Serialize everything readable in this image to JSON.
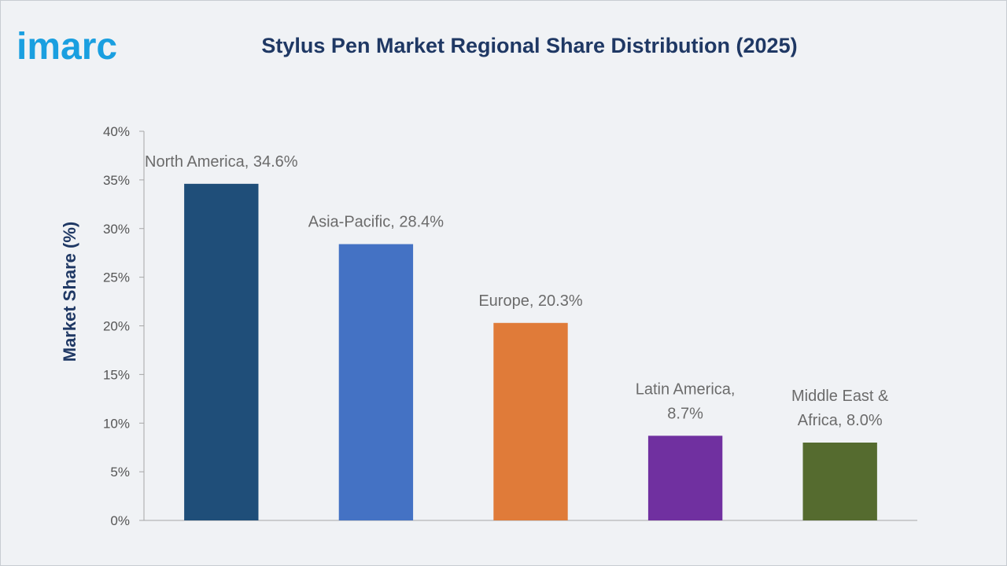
{
  "brand": {
    "logo_text": "imarc",
    "logo_color": "#1a9fe0"
  },
  "chart_data": {
    "type": "bar",
    "title": "Stylus Pen Market Regional Share Distribution (2025)",
    "xlabel": "",
    "ylabel": "Market Share (%)",
    "categories": [
      "North America",
      "Asia-Pacific",
      "Europe",
      "Latin America",
      "Middle East & Africa"
    ],
    "values": [
      34.6,
      28.4,
      20.3,
      8.7,
      8.0
    ],
    "data_labels": [
      [
        "North America, 34.6%"
      ],
      [
        "Asia-Pacific, 28.4%"
      ],
      [
        "Europe, 20.3%"
      ],
      [
        "Latin America,",
        "8.7%"
      ],
      [
        "Middle East &",
        "Africa, 8.0%"
      ]
    ],
    "colors": [
      "#1f4e79",
      "#4472c4",
      "#e07b39",
      "#7030a0",
      "#556b2f"
    ],
    "ylim": [
      0,
      40
    ],
    "yticks": [
      0,
      5,
      10,
      15,
      20,
      25,
      30,
      35,
      40
    ],
    "ytick_labels": [
      "0%",
      "5%",
      "10%",
      "15%",
      "20%",
      "25%",
      "30%",
      "35%",
      "40%"
    ],
    "grid": false,
    "legend": "none"
  }
}
